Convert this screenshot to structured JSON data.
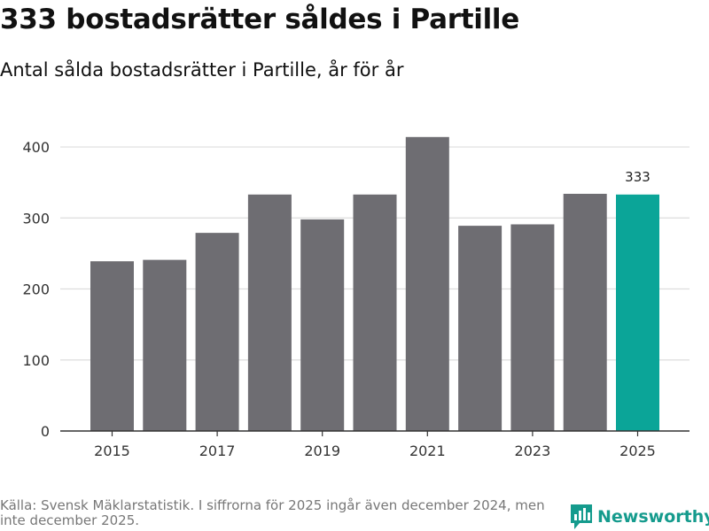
{
  "title": "333 bostadsrätter såldes i Partille",
  "subtitle": "Antal sålda bostadsrätter i Partille, år för år",
  "footer": {
    "source": "Källa: Svensk Mäklarstatistik. I siffrorna för 2025 ingår även december 2024, men inte december 2025."
  },
  "brand": {
    "name": "Newsworthy",
    "icon": "newsworthy-logo-icon"
  },
  "colors": {
    "bar": "#6e6d72",
    "highlight": "#0ba598",
    "grid": "#dddddd",
    "axis": "#333333"
  },
  "chart_data": {
    "type": "bar",
    "title": "333 bostadsrätter såldes i Partille",
    "xlabel": "",
    "ylabel": "",
    "categories": [
      "2015",
      "2016",
      "2017",
      "2018",
      "2019",
      "2020",
      "2021",
      "2022",
      "2023",
      "2024",
      "2025"
    ],
    "x_tick_labels": [
      "2015",
      "2017",
      "2019",
      "2021",
      "2023",
      "2025"
    ],
    "values": [
      239,
      241,
      279,
      333,
      298,
      333,
      414,
      289,
      291,
      334,
      333
    ],
    "highlight_index": 10,
    "data_labels": [
      {
        "index": 10,
        "text": "333"
      }
    ],
    "y_ticks": [
      0,
      100,
      200,
      300,
      400
    ],
    "ylim": [
      0,
      420
    ],
    "grid": true
  }
}
